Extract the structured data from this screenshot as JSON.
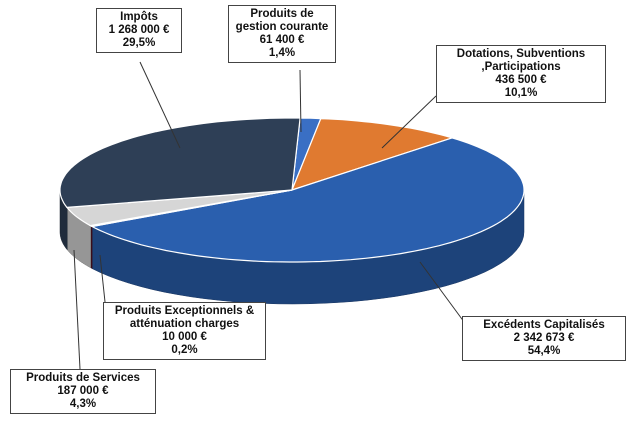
{
  "chart_data": {
    "type": "pie3d",
    "categories": [
      "Produits de gestion courante",
      "Dotations, Subventions ,Participations",
      "Excédents Capitalisés",
      "Produits Exceptionnels & atténuation charges",
      "Produits de Services",
      "Impôts"
    ],
    "values": [
      61400,
      436500,
      2342673,
      10000,
      187000,
      1268000
    ],
    "value_labels": [
      "61 400 €",
      "436 500 €",
      "2 342 673 €",
      "10 000 €",
      "187 000 €",
      "1 268 000 €"
    ],
    "percentages": [
      1.4,
      10.1,
      54.4,
      0.2,
      4.3,
      29.5
    ],
    "percent_labels": [
      "1,4%",
      "10,1%",
      "54,4%",
      "0,2%",
      "4,3%",
      "29,5%"
    ],
    "colors": [
      "#3a6fc4",
      "#e07a30",
      "#2a5fae",
      "#5a1426",
      "#d6d6d6",
      "#2e3f56"
    ]
  }
}
